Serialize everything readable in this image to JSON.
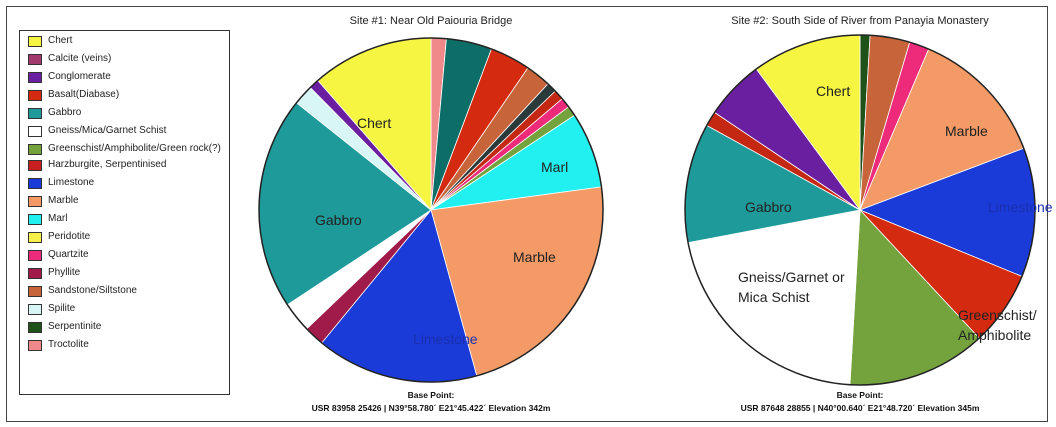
{
  "chart_data": [
    {
      "type": "pie",
      "title": "Site #1: Near Old Paiouria Bridge",
      "footer": [
        "Base Point:",
        "USR 83958 25426 | N39°58.780´ E21°45.422´ Elevation 342m"
      ],
      "slices": [
        {
          "name": "Troctolite",
          "value": 1.5
        },
        {
          "name": "Serpentinite",
          "value": 0.0
        },
        {
          "name": "Harzburgite, Serpentinised",
          "value": 0.0
        },
        {
          "name": "Calcite (veins)",
          "value": 0.0
        },
        {
          "name": "Gabbro-teal",
          "value": 4.5
        },
        {
          "name": "Basalt(Diabase)",
          "value": 4.0
        },
        {
          "name": "Sandstone/Siltstone",
          "value": 2.5
        },
        {
          "name": "Gabbro-dark",
          "value": 1.0
        },
        {
          "name": "Basalt(Diabase)-2",
          "value": 1.0
        },
        {
          "name": "Quartzite",
          "value": 1.0
        },
        {
          "name": "Greenschist/Amphibolite/Green rock(?)",
          "value": 1.0
        },
        {
          "name": "Marl",
          "value": 7.5
        },
        {
          "name": "Marble",
          "value": 24.0
        },
        {
          "name": "Limestone",
          "value": 16.0
        },
        {
          "name": "Phyllite",
          "value": 2.0
        },
        {
          "name": "Gneiss/Mica/Garnet Schist",
          "value": 3.0
        },
        {
          "name": "Gabbro",
          "value": 21.0
        },
        {
          "name": "Spilite",
          "value": 2.0
        },
        {
          "name": "Conglomerate",
          "value": 1.0
        },
        {
          "name": "Chert",
          "value": 12.0
        }
      ],
      "labels": [
        {
          "text": "Chert",
          "slice": "Chert"
        },
        {
          "text": "Gabbro",
          "slice": "Gabbro"
        },
        {
          "text": "Marl",
          "slice": "Marl"
        },
        {
          "text": "Marble",
          "slice": "Marble"
        },
        {
          "text": "Limestone",
          "slice": "Limestone"
        }
      ]
    },
    {
      "type": "pie",
      "title": "Site #2: South Side of River from Panayia Monastery",
      "footer": [
        "Base Point:",
        "USR 87648 28855 | N40°00.640´ E21°48.720´ Elevation 345m"
      ],
      "slices": [
        {
          "name": "Serpentinite",
          "value": 1.0
        },
        {
          "name": "Sandstone/Siltstone",
          "value": 4.0
        },
        {
          "name": "Quartzite",
          "value": 2.0
        },
        {
          "name": "Marble",
          "value": 14.0
        },
        {
          "name": "Limestone",
          "value": 13.0
        },
        {
          "name": "Basalt(Diabase)",
          "value": 7.5
        },
        {
          "name": "Greenschist/Amphibolite/Green rock(?)",
          "value": 14.0
        },
        {
          "name": "Gneiss/Mica/Garnet Schist",
          "value": 23.0
        },
        {
          "name": "Gabbro",
          "value": 12.0
        },
        {
          "name": "Basalt(Diabase)-2",
          "value": 1.5
        },
        {
          "name": "Conglomerate",
          "value": 6.0
        },
        {
          "name": "Chert",
          "value": 11.0
        }
      ],
      "labels": [
        {
          "text": "Chert",
          "slice": "Chert"
        },
        {
          "text": "Marble",
          "slice": "Marble"
        },
        {
          "text": "Limestone",
          "slice": "Limestone"
        },
        {
          "text": "Gabbro",
          "slice": "Gabbro"
        },
        {
          "text": "Gneiss/Garnet or\nMica Schist",
          "slice": "Gneiss/Mica/Garnet Schist"
        },
        {
          "text": "Greenschist/\nAmphibolite",
          "slice": "Greenschist/Amphibolite/Green rock(?)"
        }
      ]
    }
  ],
  "legend": [
    {
      "label": "Chert",
      "color": "#f5f542"
    },
    {
      "label": "Calcite (veins)",
      "color": "#a23a6e"
    },
    {
      "label": "Conglomerate",
      "color": "#6a1fa0"
    },
    {
      "label": "Basalt(Diabase)",
      "color": "#d42a10"
    },
    {
      "label": "Gabbro",
      "color": "#1f9a9a"
    },
    {
      "label": "Gneiss/Mica/Garnet Schist",
      "color": "#ffffff"
    },
    {
      "label": "Greenschist/Amphibolite/Green rock(?)",
      "color": "#74a33e"
    },
    {
      "label": "Harzburgite, Serpentinised",
      "color": "#c82020"
    },
    {
      "label": "Limestone",
      "color": "#1a3bd8"
    },
    {
      "label": "Marble",
      "color": "#f49a66"
    },
    {
      "label": "Marl",
      "color": "#22f0f0"
    },
    {
      "label": "Peridotite",
      "color": "#f8f04a"
    },
    {
      "label": "Quartzite",
      "color": "#ee2a7b"
    },
    {
      "label": "Phyllite",
      "color": "#a01a4a"
    },
    {
      "label": "Sandstone/Siltstone",
      "color": "#c8643a"
    },
    {
      "label": "Spilite",
      "color": "#d8f6f6"
    },
    {
      "label": "Serpentinite",
      "color": "#1e5218"
    },
    {
      "label": "Troctolite",
      "color": "#f08a8a"
    }
  ],
  "extra_colors": {
    "Gabbro-teal": "#0d6e68",
    "Gabbro-dark": "#2a3a3a",
    "Basalt(Diabase)-2": "#c42812"
  }
}
